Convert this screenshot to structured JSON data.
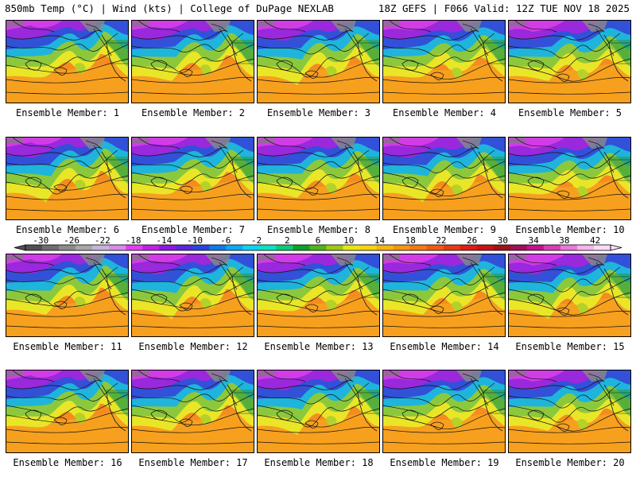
{
  "header": {
    "left_title": "850mb Temp (°C) | Wind (kts) | College of DuPage NEXLAB",
    "right_title": "18Z GEFS | F066 Valid: 12Z TUE NOV 18 2025"
  },
  "members": [
    {
      "label": "Ensemble Member: 1"
    },
    {
      "label": "Ensemble Member: 2"
    },
    {
      "label": "Ensemble Member: 3"
    },
    {
      "label": "Ensemble Member: 4"
    },
    {
      "label": "Ensemble Member: 5"
    },
    {
      "label": "Ensemble Member: 6"
    },
    {
      "label": "Ensemble Member: 7"
    },
    {
      "label": "Ensemble Member: 8"
    },
    {
      "label": "Ensemble Member: 9"
    },
    {
      "label": "Ensemble Member: 10"
    },
    {
      "label": "Ensemble Member: 11"
    },
    {
      "label": "Ensemble Member: 12"
    },
    {
      "label": "Ensemble Member: 13"
    },
    {
      "label": "Ensemble Member: 14"
    },
    {
      "label": "Ensemble Member: 15"
    },
    {
      "label": "Ensemble Member: 16"
    },
    {
      "label": "Ensemble Member: 17"
    },
    {
      "label": "Ensemble Member: 18"
    },
    {
      "label": "Ensemble Member: 19"
    },
    {
      "label": "Ensemble Member: 20"
    }
  ],
  "colorbar": {
    "units": "°C",
    "min": -32,
    "max": 44,
    "tick_labels": [
      "-30",
      "-26",
      "-22",
      "-18",
      "-14",
      "-10",
      "-6",
      "-2",
      "2",
      "6",
      "10",
      "14",
      "18",
      "22",
      "26",
      "30",
      "34",
      "38",
      "42"
    ],
    "colors": [
      "#505050",
      "#6e6e6e",
      "#8c8c8c",
      "#a8a8a8",
      "#c4b4d8",
      "#d78ce6",
      "#e040f0",
      "#c020e6",
      "#8c18e0",
      "#5a28d8",
      "#2846dc",
      "#1478e6",
      "#10a8f0",
      "#10d0f0",
      "#10e0c0",
      "#10c878",
      "#10a028",
      "#50b418",
      "#a0c818",
      "#e6e614",
      "#f5d214",
      "#f5b414",
      "#f59614",
      "#f57814",
      "#f05a14",
      "#e63c14",
      "#dc1e14",
      "#c81414",
      "#a01414",
      "#a0105a",
      "#c0148c",
      "#dc3cb4",
      "#ec78d8",
      "#f4b4ec",
      "#fadcf4"
    ]
  }
}
